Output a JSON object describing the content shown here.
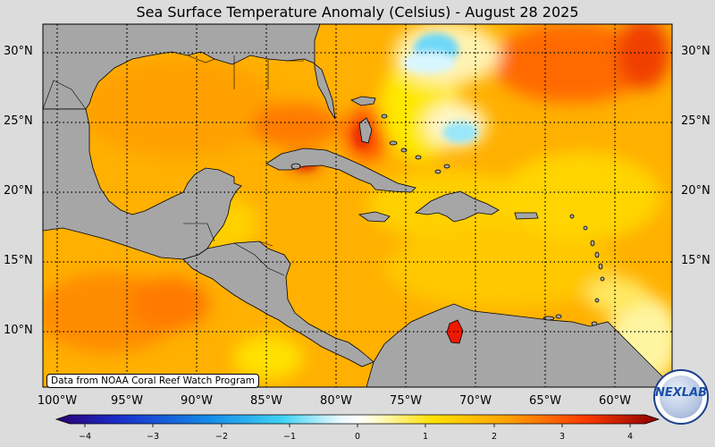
{
  "title": "Sea Surface Temperature Anomaly (Celsius) - August 28 2025",
  "lat_labels": [
    "30°N",
    "25°N",
    "20°N",
    "15°N",
    "10°N"
  ],
  "lon_labels": [
    "100°W",
    "95°W",
    "90°W",
    "85°W",
    "80°W",
    "75°W",
    "70°W",
    "65°W",
    "60°W"
  ],
  "colorbar": {
    "ticks": [
      "−4",
      "−3",
      "−2",
      "−1",
      "0",
      "1",
      "2",
      "3",
      "4"
    ],
    "min": -4,
    "max": 4
  },
  "credit": "Data from NOAA Coral Reef Watch Program",
  "logo_text": "NEXLAB",
  "colors": {
    "land": "#a6a6a6",
    "ocean_base": "#ffb300",
    "warm": "#ff4a00",
    "cool": "#35c8f0",
    "background": "#dcdcdc"
  }
}
